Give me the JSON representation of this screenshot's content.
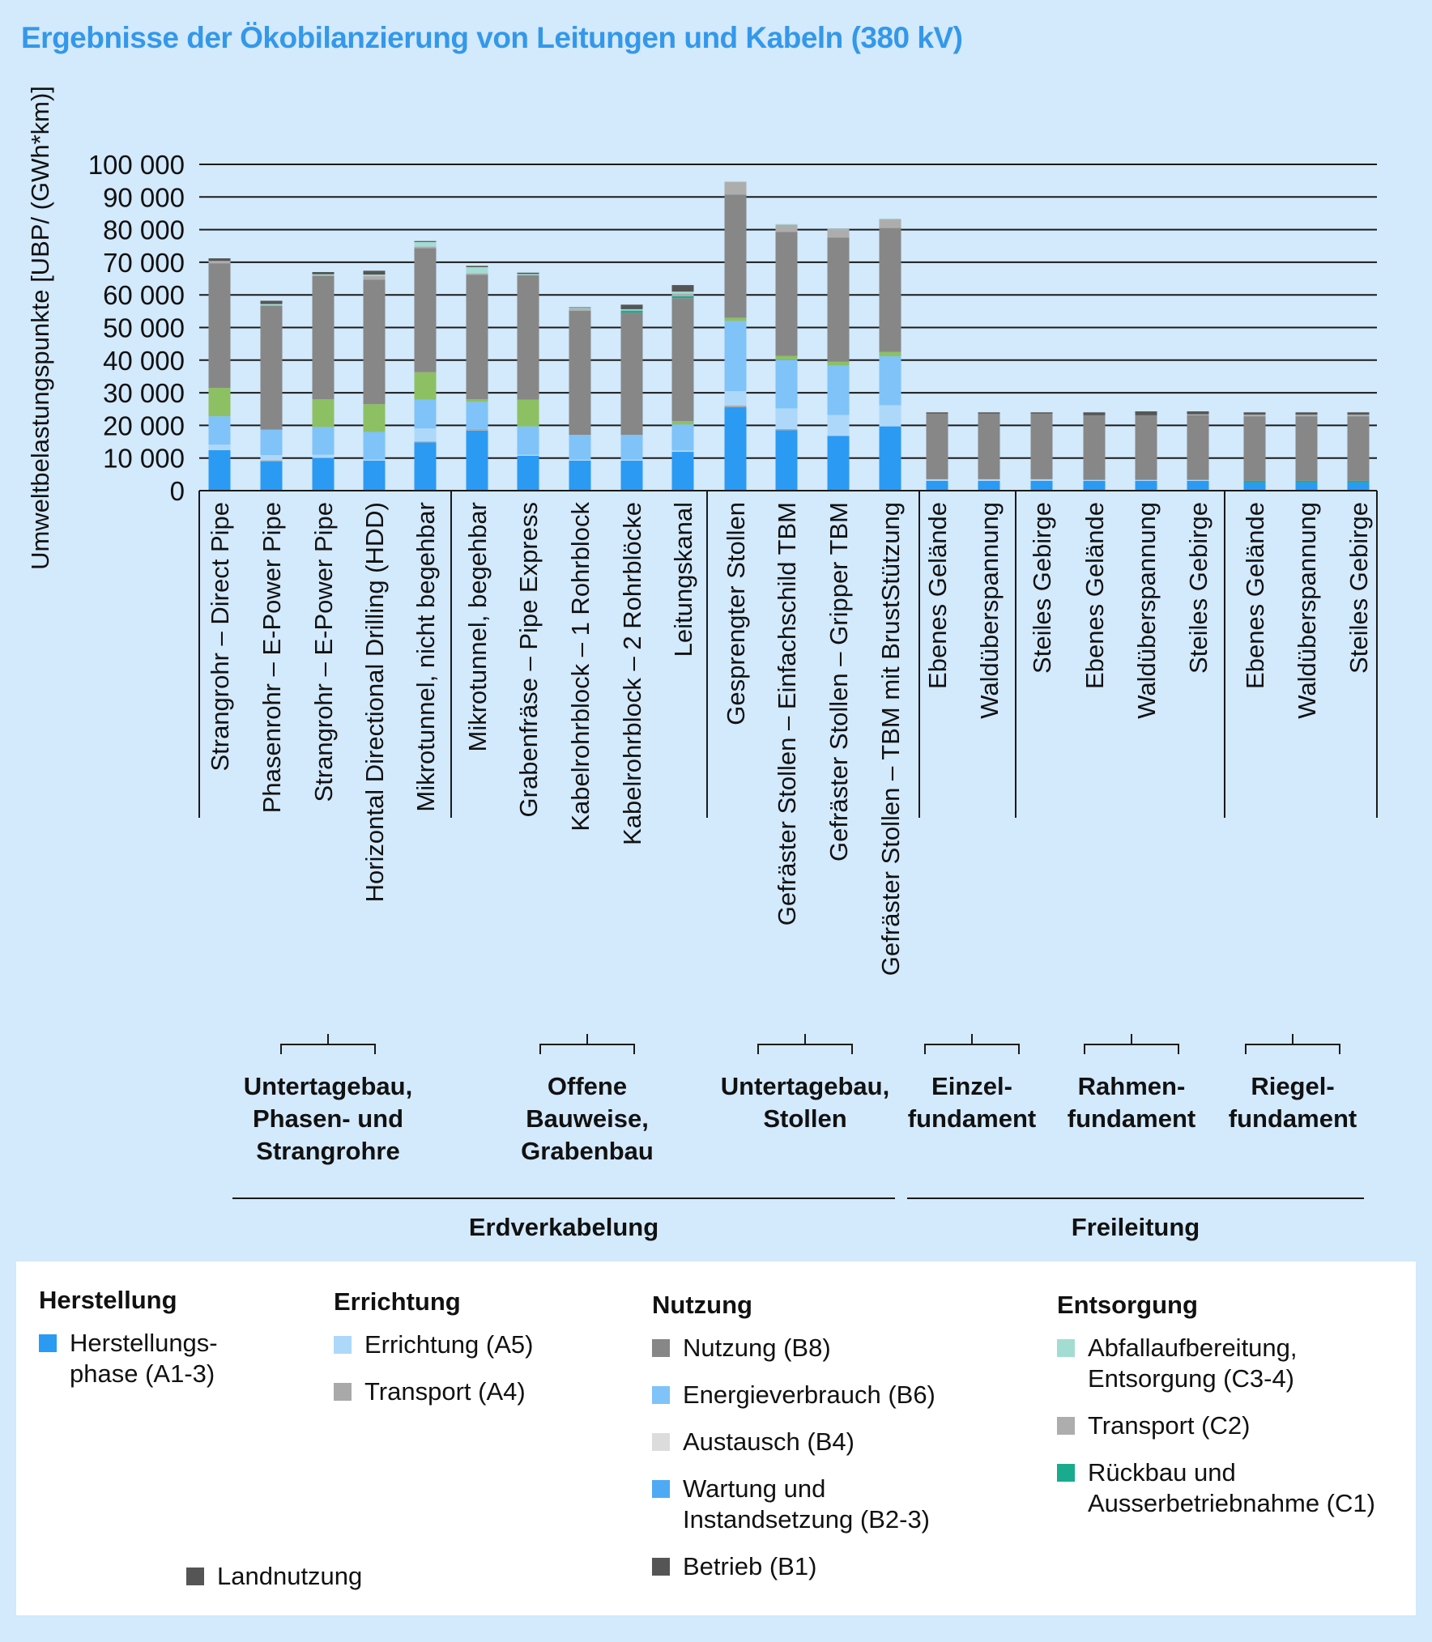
{
  "title": "Ergebnisse der Ökobilanzierung von Leitungen und Kabeln (380 kV)",
  "chart_data": {
    "type": "bar",
    "stacked": true,
    "title": "Ergebnisse der Ökobilanzierung von Leitungen und Kabeln (380 kV)",
    "ylabel": "Umweltbelastungspunkte [UBP/ (GWh*km)]",
    "xlabel": "",
    "ylim": [
      0,
      100000
    ],
    "yticks": [
      0,
      10000,
      20000,
      30000,
      40000,
      50000,
      60000,
      70000,
      80000,
      90000,
      100000
    ],
    "ytick_labels": [
      "0",
      "10 000",
      "20 000",
      "30 000",
      "40 000",
      "50 000",
      "60 000",
      "70 000",
      "80 000",
      "90 000",
      "100 000"
    ],
    "grid": true,
    "categories": [
      "Strangrohr – Direct Pipe",
      "Phasenrohr – E-Power Pipe",
      "Strangrohr – E-Power Pipe",
      "Horizontal Directional Drilling (HDD)",
      "Mikrotunnel, nicht begehbar",
      "Mikrotunnel, begehbar",
      "Grabenfräse – Pipe Express",
      "Kabelrohrblock – 1 Rohrblock",
      "Kabelrohrblock – 2 Rohrblöcke",
      "Leitungskanal",
      "Gesprengter Stollen",
      "Gefräster Stollen – Einfachschild TBM",
      "Gefräster Stollen – Gripper TBM",
      "Gefräster Stollen – TBM mit BrustStützung",
      "Ebenes Gelände",
      "Waldüberspannung",
      "Steiles Gebirge",
      "Ebenes Gelände",
      "Waldüberspannung",
      "Steiles Gebirge",
      "Ebenes Gelände",
      "Waldüberspannung",
      "Steiles Gebirge"
    ],
    "series": [
      {
        "name": "Herstellungsphase (A1-3)",
        "color": "#2b9af3",
        "values": [
          12400,
          9000,
          10000,
          9200,
          14800,
          18400,
          10700,
          9200,
          9200,
          11900,
          25600,
          18500,
          16800,
          19700,
          3000,
          3000,
          3000,
          3000,
          3000,
          3000,
          2500,
          2500,
          2500
        ]
      },
      {
        "name": "Transport (A4)",
        "color": "#a9a9a9",
        "values": [
          0,
          300,
          0,
          0,
          300,
          500,
          0,
          0,
          0,
          0,
          500,
          400,
          0,
          0,
          0,
          0,
          0,
          0,
          0,
          0,
          0,
          0,
          0
        ]
      },
      {
        "name": "Errichtung (A5)",
        "color": "#aed8fa",
        "values": [
          1700,
          1600,
          1000,
          300,
          4000,
          0,
          300,
          300,
          300,
          400,
          4400,
          6300,
          6400,
          6500,
          500,
          500,
          500,
          300,
          300,
          300,
          0,
          0,
          0
        ]
      },
      {
        "name": "Energieverbrauch (B6)",
        "color": "#7fc3f8",
        "values": [
          8700,
          7800,
          8500,
          8500,
          8800,
          8300,
          8700,
          7600,
          7600,
          8000,
          21500,
          14900,
          15100,
          15000,
          0,
          0,
          0,
          0,
          0,
          0,
          0,
          0,
          0
        ]
      },
      {
        "name": "",
        "color": "#8dc063",
        "values": [
          8700,
          0,
          8500,
          8500,
          8400,
          800,
          8200,
          0,
          0,
          1000,
          1000,
          1200,
          1200,
          1300,
          0,
          0,
          0,
          0,
          0,
          0,
          0,
          0,
          0
        ]
      },
      {
        "name": "Rückbau und Ausserbetriebnahme (C1)",
        "color": "#1aab8f",
        "values": [
          0,
          0,
          0,
          0,
          0,
          0,
          0,
          0,
          0,
          0,
          0,
          0,
          0,
          0,
          0,
          0,
          0,
          0,
          0,
          0,
          500,
          500,
          500
        ]
      },
      {
        "name": "Nutzung (B8)",
        "color": "#878787",
        "values": [
          38200,
          38000,
          37900,
          38200,
          38000,
          38200,
          38100,
          38000,
          37500,
          37700,
          37700,
          38000,
          38100,
          38000,
          20100,
          20100,
          20100,
          19800,
          19800,
          19800,
          19800,
          19800,
          19800
        ]
      },
      {
        "name": "Rückbau und Ausserbetriebnahme (C1)",
        "color": "#1aab8f",
        "values": [
          0,
          0,
          0,
          0,
          0,
          0,
          0,
          0,
          600,
          600,
          0,
          0,
          0,
          0,
          0,
          0,
          0,
          0,
          0,
          0,
          0,
          0,
          0
        ]
      },
      {
        "name": "Transport (C2)",
        "color": "#adadad",
        "values": [
          700,
          0,
          0,
          1100,
          500,
          400,
          0,
          600,
          0,
          800,
          3900,
          2200,
          2400,
          2700,
          0,
          0,
          0,
          0,
          0,
          300,
          500,
          500,
          500
        ]
      },
      {
        "name": "Abfallaufbereitung, Entsorgung (C3-4)",
        "color": "#a3dcd3",
        "values": [
          0,
          500,
          400,
          400,
          1400,
          1900,
          400,
          300,
          400,
          600,
          200,
          200,
          200,
          200,
          0,
          0,
          0,
          0,
          0,
          0,
          0,
          0,
          0
        ]
      },
      {
        "name": "Betrieb (B1)",
        "color": "#555555",
        "values": [
          800,
          1000,
          700,
          1200,
          300,
          400,
          400,
          200,
          1400,
          2000,
          0,
          0,
          0,
          0,
          400,
          400,
          400,
          900,
          1200,
          900,
          700,
          700,
          700
        ]
      }
    ],
    "totals_approx": [
      71000,
      58200,
      67000,
      67400,
      76500,
      68900,
      66800,
      56200,
      57000,
      63000,
      94600,
      81500,
      80000,
      83200,
      24000,
      24000,
      24000,
      24000,
      24300,
      24300,
      24000,
      24000,
      24000
    ],
    "groups": [
      {
        "label": "Untertagebau,\nPhasen- und\nStrangrohre",
        "start": 0,
        "end": 4
      },
      {
        "label": "Offene\nBauweise,\nGrabenbau",
        "start": 5,
        "end": 9
      },
      {
        "label": "Untertagebau,\nStollen",
        "start": 10,
        "end": 13
      },
      {
        "label": "Einzel-\nfundament",
        "start": 14,
        "end": 16
      },
      {
        "label": "Rahmen-\nfundament",
        "start": 17,
        "end": 19
      },
      {
        "label": "Riegel-\nfundament",
        "start": 20,
        "end": 22
      }
    ],
    "supergroups": [
      {
        "label": "Erdverkabelung",
        "start": 0,
        "end": 13
      },
      {
        "label": "Freileitung",
        "start": 14,
        "end": 22
      }
    ],
    "legend_position": "bottom"
  },
  "legend": {
    "columns": [
      {
        "heading": "Herstellung",
        "items": [
          {
            "label": "Herstellungs-\nphase (A1-3)",
            "color": "#2b9af3"
          }
        ]
      },
      {
        "heading": "Errichtung",
        "items": [
          {
            "label": "Errichtung (A5)",
            "color": "#aed8fa"
          },
          {
            "label": "Transport (A4)",
            "color": "#a9a9a9"
          }
        ]
      },
      {
        "heading": "Nutzung",
        "items": [
          {
            "label": "Nutzung (B8)",
            "color": "#878787"
          },
          {
            "label": "Energieverbrauch (B6)",
            "color": "#7fc3f8"
          },
          {
            "label": "Austausch (B4)",
            "color": "#dcdcdc"
          },
          {
            "label": "Wartung und\nInstandsetzung (B2-3)",
            "color": "#4eaaf5"
          },
          {
            "label": "Betrieb (B1)",
            "color": "#555555"
          }
        ]
      },
      {
        "heading": "Entsorgung",
        "items": [
          {
            "label": "Abfallaufbereitung,\nEntsorgung (C3-4)",
            "color": "#a3dcd3"
          },
          {
            "label": "Transport (C2)",
            "color": "#adadad"
          },
          {
            "label": "Rückbau und\nAusserbetriebnahme (C1)",
            "color": "#1aab8f"
          }
        ]
      }
    ],
    "extra": {
      "label": "Landnutzung",
      "color": "#555555"
    }
  }
}
